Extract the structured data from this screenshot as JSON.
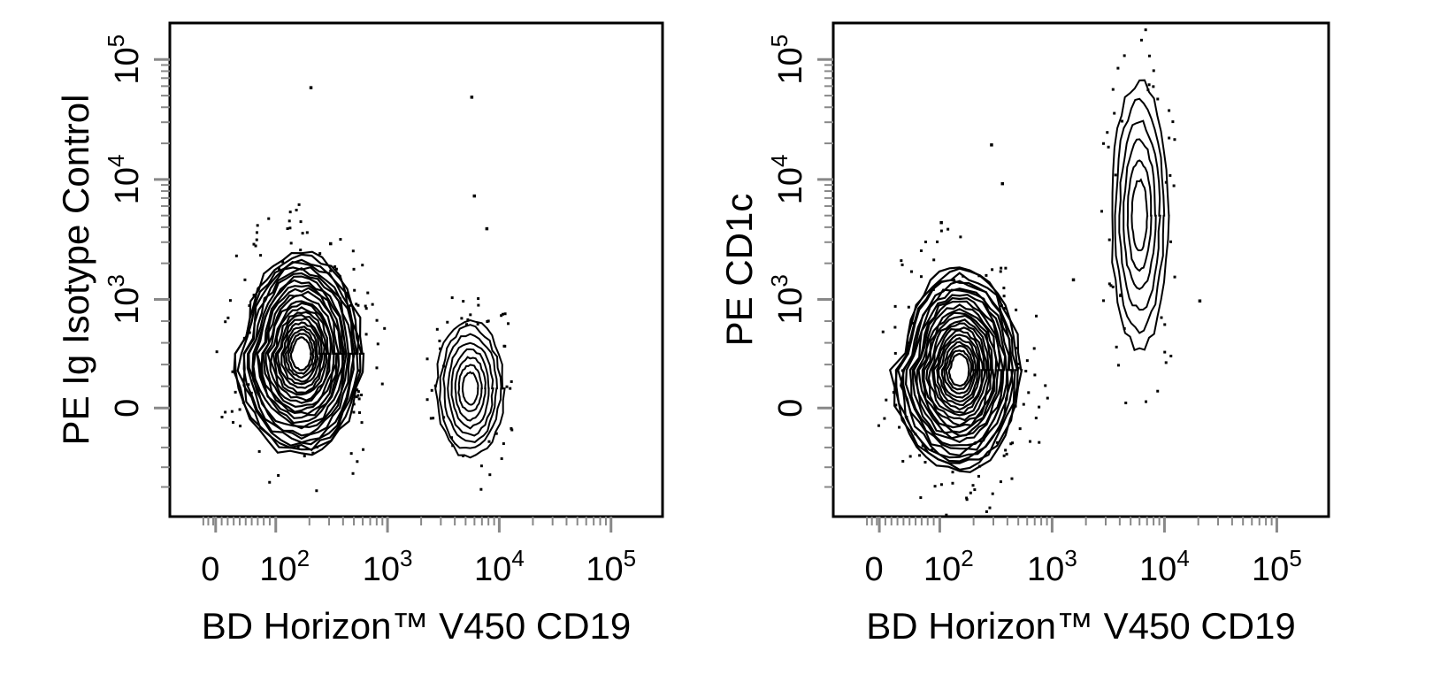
{
  "chart_data": [
    {
      "type": "contour",
      "xlabel": "BD Horizon™ V450 CD19",
      "ylabel": "PE  Ig Isotype Control",
      "x_scale": "biexponential",
      "y_scale": "biexponential",
      "x_ticks": [
        {
          "value": 0,
          "base": "0",
          "exp": ""
        },
        {
          "value": 100,
          "base": "10",
          "exp": "2"
        },
        {
          "value": 1000,
          "base": "10",
          "exp": "3"
        },
        {
          "value": 10000,
          "base": "10",
          "exp": "4"
        },
        {
          "value": 100000,
          "base": "10",
          "exp": "5"
        }
      ],
      "y_ticks": [
        {
          "value": 0,
          "base": "0",
          "exp": ""
        },
        {
          "value": 1000,
          "base": "10",
          "exp": "3"
        },
        {
          "value": 10000,
          "base": "10",
          "exp": "4"
        },
        {
          "value": 100000,
          "base": "10",
          "exp": "5"
        }
      ],
      "populations": [
        {
          "center_x": 170,
          "center_y": 500,
          "rings": 24
        },
        {
          "center_x": 5500,
          "center_y": 180,
          "rings": 8
        }
      ],
      "outliers": [
        [
          200,
          60000
        ],
        [
          5500,
          50000
        ],
        [
          5800,
          7500
        ],
        [
          7500,
          4000
        ],
        [
          300,
          3000
        ]
      ]
    },
    {
      "type": "contour",
      "xlabel": "BD Horizon™ V450 CD19",
      "ylabel": "PE  CD1c",
      "x_scale": "biexponential",
      "y_scale": "biexponential",
      "x_ticks": [
        {
          "value": 0,
          "base": "0",
          "exp": ""
        },
        {
          "value": 100,
          "base": "10",
          "exp": "2"
        },
        {
          "value": 1000,
          "base": "10",
          "exp": "3"
        },
        {
          "value": 10000,
          "base": "10",
          "exp": "4"
        },
        {
          "value": 100000,
          "base": "10",
          "exp": "5"
        }
      ],
      "y_ticks": [
        {
          "value": 0,
          "base": "0",
          "exp": ""
        },
        {
          "value": 1000,
          "base": "10",
          "exp": "3"
        },
        {
          "value": 10000,
          "base": "10",
          "exp": "4"
        },
        {
          "value": 100000,
          "base": "10",
          "exp": "5"
        }
      ],
      "populations": [
        {
          "center_x": 150,
          "center_y": 350,
          "rings": 24
        },
        {
          "center_x": 6000,
          "center_y": 5000,
          "rings": 6
        }
      ],
      "outliers": [
        [
          280,
          20000
        ],
        [
          350,
          9500
        ],
        [
          100,
          4500
        ],
        [
          1500,
          1500
        ],
        [
          20000,
          1000
        ]
      ]
    }
  ]
}
